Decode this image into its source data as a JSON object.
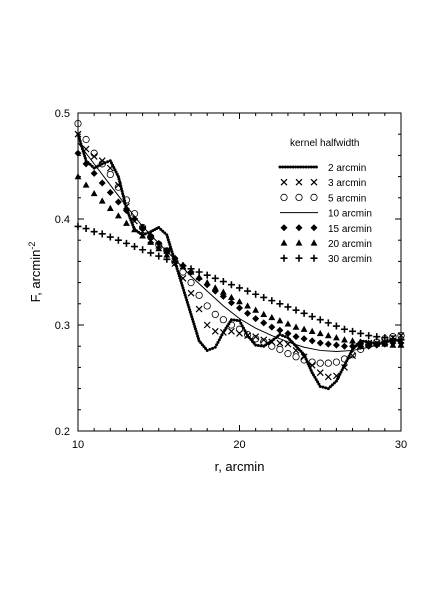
{
  "chart_data": {
    "type": "line",
    "title": "",
    "xlabel": "r, arcmin",
    "ylabel": "F, arcmin",
    "ylabel_sup": "-2",
    "xlim": [
      10,
      30
    ],
    "ylim": [
      0.2,
      0.5
    ],
    "xticks": [
      10,
      20,
      30
    ],
    "xtick_labels": [
      "10",
      "20",
      "30"
    ],
    "yticks": [
      0.2,
      0.3,
      0.4,
      0.5
    ],
    "ytick_labels": [
      "0.2",
      "0.3",
      "0.4",
      "0.5"
    ],
    "grid": false,
    "legend_title": "kernel halfwidth",
    "legend_placement": "top-right",
    "series": [
      {
        "name": "2 arcmin",
        "marker": "dot-line",
        "points": [
          [
            10.0,
            0.48
          ],
          [
            10.5,
            0.455
          ],
          [
            11.0,
            0.448
          ],
          [
            11.5,
            0.452
          ],
          [
            12.0,
            0.455
          ],
          [
            12.5,
            0.44
          ],
          [
            13.0,
            0.41
          ],
          [
            13.5,
            0.39
          ],
          [
            14.0,
            0.385
          ],
          [
            14.5,
            0.388
          ],
          [
            15.0,
            0.392
          ],
          [
            15.5,
            0.385
          ],
          [
            16.0,
            0.36
          ],
          [
            16.5,
            0.335
          ],
          [
            17.0,
            0.31
          ],
          [
            17.5,
            0.285
          ],
          [
            18.0,
            0.276
          ],
          [
            18.5,
            0.279
          ],
          [
            19.0,
            0.293
          ],
          [
            19.5,
            0.305
          ],
          [
            20.0,
            0.304
          ],
          [
            20.5,
            0.29
          ],
          [
            21.0,
            0.281
          ],
          [
            21.5,
            0.28
          ],
          [
            22.0,
            0.285
          ],
          [
            22.5,
            0.291
          ],
          [
            23.0,
            0.288
          ],
          [
            23.5,
            0.28
          ],
          [
            24.0,
            0.272
          ],
          [
            24.5,
            0.255
          ],
          [
            25.0,
            0.242
          ],
          [
            25.5,
            0.24
          ],
          [
            26.0,
            0.247
          ],
          [
            26.5,
            0.262
          ],
          [
            27.0,
            0.277
          ],
          [
            27.5,
            0.285
          ],
          [
            28.0,
            0.284
          ],
          [
            28.5,
            0.282
          ],
          [
            29.0,
            0.284
          ],
          [
            29.5,
            0.286
          ],
          [
            30.0,
            0.285
          ]
        ]
      },
      {
        "name": "3 arcmin",
        "marker": "x",
        "points": [
          [
            10.0,
            0.48
          ],
          [
            10.5,
            0.466
          ],
          [
            11.0,
            0.459
          ],
          [
            11.5,
            0.455
          ],
          [
            12.0,
            0.448
          ],
          [
            12.5,
            0.432
          ],
          [
            13.0,
            0.412
          ],
          [
            13.5,
            0.398
          ],
          [
            14.0,
            0.388
          ],
          [
            14.5,
            0.38
          ],
          [
            15.0,
            0.375
          ],
          [
            15.5,
            0.37
          ],
          [
            16.0,
            0.358
          ],
          [
            16.5,
            0.344
          ],
          [
            17.0,
            0.33
          ],
          [
            17.5,
            0.315
          ],
          [
            18.0,
            0.3
          ],
          [
            18.5,
            0.294
          ],
          [
            19.0,
            0.293
          ],
          [
            19.5,
            0.294
          ],
          [
            20.0,
            0.292
          ],
          [
            20.5,
            0.29
          ],
          [
            21.0,
            0.289
          ],
          [
            21.5,
            0.286
          ],
          [
            22.0,
            0.284
          ],
          [
            22.5,
            0.283
          ],
          [
            23.0,
            0.282
          ],
          [
            23.5,
            0.276
          ],
          [
            24.0,
            0.27
          ],
          [
            24.5,
            0.262
          ],
          [
            25.0,
            0.255
          ],
          [
            25.5,
            0.251
          ],
          [
            26.0,
            0.252
          ],
          [
            26.5,
            0.26
          ],
          [
            27.0,
            0.271
          ],
          [
            27.5,
            0.28
          ],
          [
            28.0,
            0.283
          ],
          [
            28.5,
            0.283
          ],
          [
            29.0,
            0.284
          ],
          [
            29.5,
            0.288
          ],
          [
            30.0,
            0.29
          ]
        ]
      },
      {
        "name": "5 arcmin",
        "marker": "circle",
        "points": [
          [
            10.0,
            0.49
          ],
          [
            10.5,
            0.475
          ],
          [
            11.0,
            0.462
          ],
          [
            11.5,
            0.452
          ],
          [
            12.0,
            0.442
          ],
          [
            12.5,
            0.43
          ],
          [
            13.0,
            0.418
          ],
          [
            13.5,
            0.405
          ],
          [
            14.0,
            0.392
          ],
          [
            14.5,
            0.383
          ],
          [
            15.0,
            0.376
          ],
          [
            15.5,
            0.37
          ],
          [
            16.0,
            0.36
          ],
          [
            16.5,
            0.35
          ],
          [
            17.0,
            0.34
          ],
          [
            17.5,
            0.328
          ],
          [
            18.0,
            0.318
          ],
          [
            18.5,
            0.31
          ],
          [
            19.0,
            0.305
          ],
          [
            19.5,
            0.3
          ],
          [
            20.0,
            0.296
          ],
          [
            20.5,
            0.291
          ],
          [
            21.0,
            0.287
          ],
          [
            21.5,
            0.284
          ],
          [
            22.0,
            0.28
          ],
          [
            22.5,
            0.277
          ],
          [
            23.0,
            0.273
          ],
          [
            23.5,
            0.27
          ],
          [
            24.0,
            0.267
          ],
          [
            24.5,
            0.265
          ],
          [
            25.0,
            0.264
          ],
          [
            25.5,
            0.264
          ],
          [
            26.0,
            0.265
          ],
          [
            26.5,
            0.268
          ],
          [
            27.0,
            0.272
          ],
          [
            27.5,
            0.277
          ],
          [
            28.0,
            0.281
          ],
          [
            28.5,
            0.284
          ],
          [
            29.0,
            0.287
          ],
          [
            29.5,
            0.289
          ],
          [
            30.0,
            0.29
          ]
        ]
      },
      {
        "name": "10 arcmin",
        "marker": "line",
        "points": [
          [
            10.0,
            0.472
          ],
          [
            11.0,
            0.452
          ],
          [
            12.0,
            0.432
          ],
          [
            13.0,
            0.412
          ],
          [
            14.0,
            0.393
          ],
          [
            15.0,
            0.377
          ],
          [
            16.0,
            0.362
          ],
          [
            17.0,
            0.346
          ],
          [
            18.0,
            0.332
          ],
          [
            19.0,
            0.318
          ],
          [
            20.0,
            0.306
          ],
          [
            21.0,
            0.297
          ],
          [
            22.0,
            0.29
          ],
          [
            23.0,
            0.284
          ],
          [
            24.0,
            0.279
          ],
          [
            25.0,
            0.276
          ],
          [
            26.0,
            0.275
          ],
          [
            27.0,
            0.276
          ],
          [
            28.0,
            0.279
          ],
          [
            29.0,
            0.283
          ],
          [
            30.0,
            0.287
          ]
        ]
      },
      {
        "name": "15 arcmin",
        "marker": "diamond",
        "points": [
          [
            10.0,
            0.462
          ],
          [
            10.5,
            0.452
          ],
          [
            11.0,
            0.443
          ],
          [
            11.5,
            0.434
          ],
          [
            12.0,
            0.425
          ],
          [
            12.5,
            0.416
          ],
          [
            13.0,
            0.408
          ],
          [
            13.5,
            0.4
          ],
          [
            14.0,
            0.392
          ],
          [
            14.5,
            0.384
          ],
          [
            15.0,
            0.377
          ],
          [
            15.5,
            0.37
          ],
          [
            16.0,
            0.363
          ],
          [
            16.5,
            0.356
          ],
          [
            17.0,
            0.35
          ],
          [
            17.5,
            0.344
          ],
          [
            18.0,
            0.338
          ],
          [
            18.5,
            0.332
          ],
          [
            19.0,
            0.327
          ],
          [
            19.5,
            0.321
          ],
          [
            20.0,
            0.316
          ],
          [
            20.5,
            0.311
          ],
          [
            21.0,
            0.306
          ],
          [
            21.5,
            0.302
          ],
          [
            22.0,
            0.298
          ],
          [
            22.5,
            0.295
          ],
          [
            23.0,
            0.292
          ],
          [
            23.5,
            0.289
          ],
          [
            24.0,
            0.287
          ],
          [
            24.5,
            0.285
          ],
          [
            25.0,
            0.283
          ],
          [
            25.5,
            0.282
          ],
          [
            26.0,
            0.281
          ],
          [
            26.5,
            0.28
          ],
          [
            27.0,
            0.28
          ],
          [
            27.5,
            0.28
          ],
          [
            28.0,
            0.28
          ],
          [
            28.5,
            0.281
          ],
          [
            29.0,
            0.282
          ],
          [
            29.5,
            0.283
          ],
          [
            30.0,
            0.283
          ]
        ]
      },
      {
        "name": "20 arcmin",
        "marker": "triangle",
        "points": [
          [
            10.0,
            0.44
          ],
          [
            10.5,
            0.432
          ],
          [
            11.0,
            0.424
          ],
          [
            11.5,
            0.417
          ],
          [
            12.0,
            0.41
          ],
          [
            12.5,
            0.403
          ],
          [
            13.0,
            0.396
          ],
          [
            13.5,
            0.39
          ],
          [
            14.0,
            0.384
          ],
          [
            14.5,
            0.378
          ],
          [
            15.0,
            0.372
          ],
          [
            15.5,
            0.366
          ],
          [
            16.0,
            0.361
          ],
          [
            16.5,
            0.355
          ],
          [
            17.0,
            0.35
          ],
          [
            17.5,
            0.345
          ],
          [
            18.0,
            0.34
          ],
          [
            18.5,
            0.335
          ],
          [
            19.0,
            0.331
          ],
          [
            19.5,
            0.326
          ],
          [
            20.0,
            0.322
          ],
          [
            20.5,
            0.318
          ],
          [
            21.0,
            0.314
          ],
          [
            21.5,
            0.31
          ],
          [
            22.0,
            0.307
          ],
          [
            22.5,
            0.304
          ],
          [
            23.0,
            0.301
          ],
          [
            23.5,
            0.298
          ],
          [
            24.0,
            0.296
          ],
          [
            24.5,
            0.294
          ],
          [
            25.0,
            0.292
          ],
          [
            25.5,
            0.29
          ],
          [
            26.0,
            0.288
          ],
          [
            26.5,
            0.286
          ],
          [
            27.0,
            0.285
          ],
          [
            27.5,
            0.284
          ],
          [
            28.0,
            0.283
          ],
          [
            28.5,
            0.282
          ],
          [
            29.0,
            0.282
          ],
          [
            29.5,
            0.281
          ],
          [
            30.0,
            0.281
          ]
        ]
      },
      {
        "name": "30 arcmin",
        "marker": "plus",
        "points": [
          [
            10.0,
            0.393
          ],
          [
            10.5,
            0.391
          ],
          [
            11.0,
            0.388
          ],
          [
            11.5,
            0.386
          ],
          [
            12.0,
            0.383
          ],
          [
            12.5,
            0.38
          ],
          [
            13.0,
            0.377
          ],
          [
            13.5,
            0.374
          ],
          [
            14.0,
            0.371
          ],
          [
            14.5,
            0.368
          ],
          [
            15.0,
            0.365
          ],
          [
            15.5,
            0.362
          ],
          [
            16.0,
            0.359
          ],
          [
            16.5,
            0.356
          ],
          [
            17.0,
            0.353
          ],
          [
            17.5,
            0.35
          ],
          [
            18.0,
            0.347
          ],
          [
            18.5,
            0.344
          ],
          [
            19.0,
            0.341
          ],
          [
            19.5,
            0.338
          ],
          [
            20.0,
            0.335
          ],
          [
            20.5,
            0.332
          ],
          [
            21.0,
            0.329
          ],
          [
            21.5,
            0.326
          ],
          [
            22.0,
            0.323
          ],
          [
            22.5,
            0.32
          ],
          [
            23.0,
            0.317
          ],
          [
            23.5,
            0.314
          ],
          [
            24.0,
            0.311
          ],
          [
            24.5,
            0.308
          ],
          [
            25.0,
            0.305
          ],
          [
            25.5,
            0.302
          ],
          [
            26.0,
            0.299
          ],
          [
            26.5,
            0.296
          ],
          [
            27.0,
            0.294
          ],
          [
            27.5,
            0.292
          ],
          [
            28.0,
            0.29
          ],
          [
            28.5,
            0.289
          ],
          [
            29.0,
            0.288
          ],
          [
            29.5,
            0.287
          ],
          [
            30.0,
            0.286
          ]
        ]
      }
    ]
  }
}
